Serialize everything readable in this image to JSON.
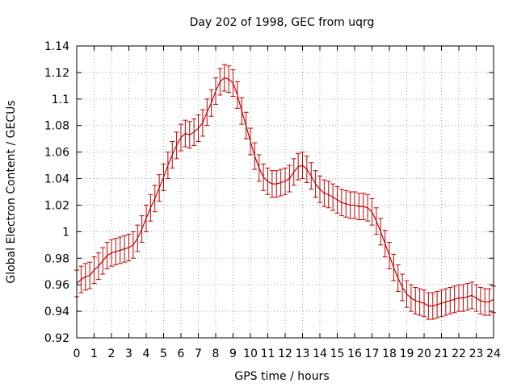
{
  "chart_data": {
    "type": "line",
    "title": "Day 202 of 1998, GEC from uqrg",
    "xlabel": "GPS time / hours",
    "ylabel": "Global Electron Content / GECUs",
    "xlim": [
      0,
      24
    ],
    "ylim": [
      0.92,
      1.14
    ],
    "grid": true,
    "series_color": "#c00000",
    "x_ticks": [
      0,
      1,
      2,
      3,
      4,
      5,
      6,
      7,
      8,
      9,
      10,
      11,
      12,
      13,
      14,
      15,
      16,
      17,
      18,
      19,
      20,
      21,
      22,
      23,
      24
    ],
    "x_tick_labels": [
      "0",
      "1",
      "2",
      "3",
      "4",
      "5",
      "6",
      "7",
      "8",
      "9",
      "10",
      "11",
      "12",
      "13",
      "14",
      "15",
      "16",
      "17",
      "18",
      "19",
      "20",
      "21",
      "22",
      "23",
      "24"
    ],
    "y_ticks": [
      0.92,
      0.94,
      0.96,
      0.98,
      1.0,
      1.02,
      1.04,
      1.06,
      1.08,
      1.1,
      1.12,
      1.14
    ],
    "y_tick_labels": [
      "0.92",
      "0.94",
      "0.96",
      "0.98",
      "1",
      "1.02",
      "1.04",
      "1.06",
      "1.08",
      "1.1",
      "1.12",
      "1.14"
    ],
    "series": [
      {
        "name": "GEC",
        "x": [
          0,
          0.25,
          0.5,
          0.75,
          1,
          1.25,
          1.5,
          1.75,
          2,
          2.25,
          2.5,
          2.75,
          3,
          3.25,
          3.5,
          3.75,
          4,
          4.25,
          4.5,
          4.75,
          5,
          5.25,
          5.5,
          5.75,
          6,
          6.25,
          6.5,
          6.75,
          7,
          7.25,
          7.5,
          7.75,
          8,
          8.25,
          8.5,
          8.75,
          9,
          9.25,
          9.5,
          9.75,
          10,
          10.25,
          10.5,
          10.75,
          11,
          11.25,
          11.5,
          11.75,
          12,
          12.25,
          12.5,
          12.75,
          13,
          13.25,
          13.5,
          13.75,
          14,
          14.25,
          14.5,
          14.75,
          15,
          15.25,
          15.5,
          15.75,
          16,
          16.25,
          16.5,
          16.75,
          17,
          17.25,
          17.5,
          17.75,
          18,
          18.25,
          18.5,
          18.75,
          19,
          19.25,
          19.5,
          19.75,
          20,
          20.25,
          20.5,
          20.75,
          21,
          21.25,
          21.5,
          21.75,
          22,
          22.25,
          22.5,
          22.75,
          23,
          23.25,
          23.5,
          23.75,
          24
        ],
        "values": [
          0.961,
          0.964,
          0.966,
          0.967,
          0.971,
          0.974,
          0.978,
          0.982,
          0.984,
          0.985,
          0.986,
          0.987,
          0.988,
          0.99,
          0.995,
          1.002,
          1.01,
          1.018,
          1.025,
          1.033,
          1.041,
          1.05,
          1.058,
          1.065,
          1.071,
          1.074,
          1.073,
          1.075,
          1.078,
          1.082,
          1.09,
          1.097,
          1.106,
          1.113,
          1.116,
          1.115,
          1.112,
          1.103,
          1.091,
          1.08,
          1.068,
          1.057,
          1.048,
          1.041,
          1.038,
          1.036,
          1.036,
          1.037,
          1.038,
          1.04,
          1.045,
          1.049,
          1.05,
          1.047,
          1.042,
          1.036,
          1.032,
          1.029,
          1.028,
          1.026,
          1.024,
          1.022,
          1.021,
          1.02,
          1.02,
          1.019,
          1.019,
          1.018,
          1.015,
          1.008,
          1.0,
          0.991,
          0.982,
          0.973,
          0.965,
          0.958,
          0.953,
          0.95,
          0.948,
          0.947,
          0.946,
          0.944,
          0.944,
          0.945,
          0.946,
          0.947,
          0.948,
          0.949,
          0.95,
          0.95,
          0.951,
          0.952,
          0.95,
          0.948,
          0.947,
          0.947,
          0.949
        ],
        "error": 0.01
      }
    ]
  }
}
